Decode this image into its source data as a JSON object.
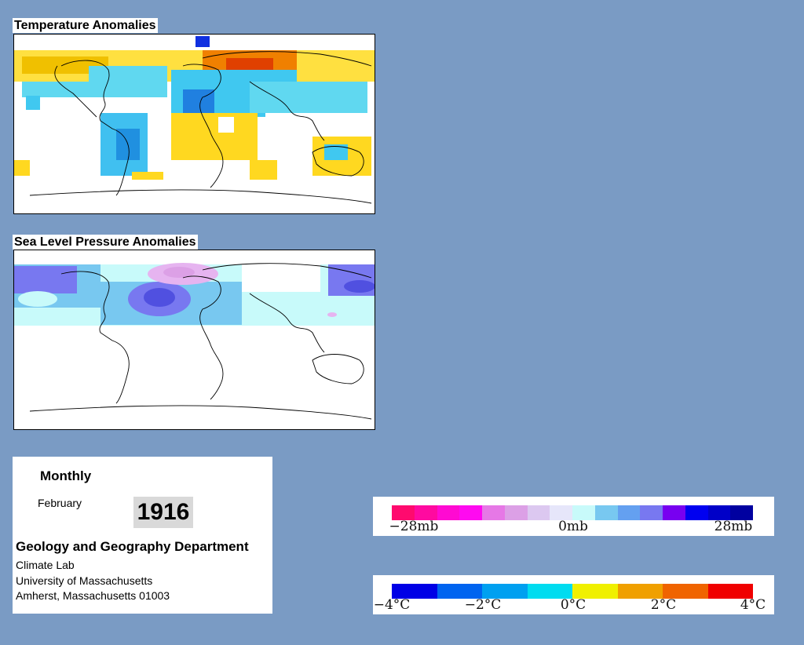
{
  "temperature_panel": {
    "title": "Temperature Anomalies"
  },
  "pressure_panel": {
    "title": "Sea Level Pressure Anomalies"
  },
  "info": {
    "period": "Monthly",
    "month": "February",
    "year": "1916",
    "department": "Geology and Geography Department",
    "lab": "Climate Lab",
    "university": "University of Massachusetts",
    "address": "Amherst, Massachusetts 01003"
  },
  "pressure_legend": {
    "colors": [
      "#ff0a6e",
      "#ff0aa0",
      "#ff0ad2",
      "#ff0af0",
      "#e678e6",
      "#dca0e6",
      "#dcc8f0",
      "#e6e6fa",
      "#c8fafa",
      "#78c8f0",
      "#64a0f0",
      "#7878f0",
      "#7800f0",
      "#0000f0",
      "#0000c8",
      "#0000a0"
    ],
    "labels": [
      "−28mb",
      "0mb",
      "28mb"
    ]
  },
  "temperature_legend": {
    "colors": [
      "#0000e6",
      "#0064f0",
      "#00a0f0",
      "#00dcf0",
      "#f0f000",
      "#f0a000",
      "#f06400",
      "#f00000"
    ],
    "labels": [
      "−4°C",
      "−2°C",
      "0°C",
      "2°C",
      "4°C"
    ]
  }
}
